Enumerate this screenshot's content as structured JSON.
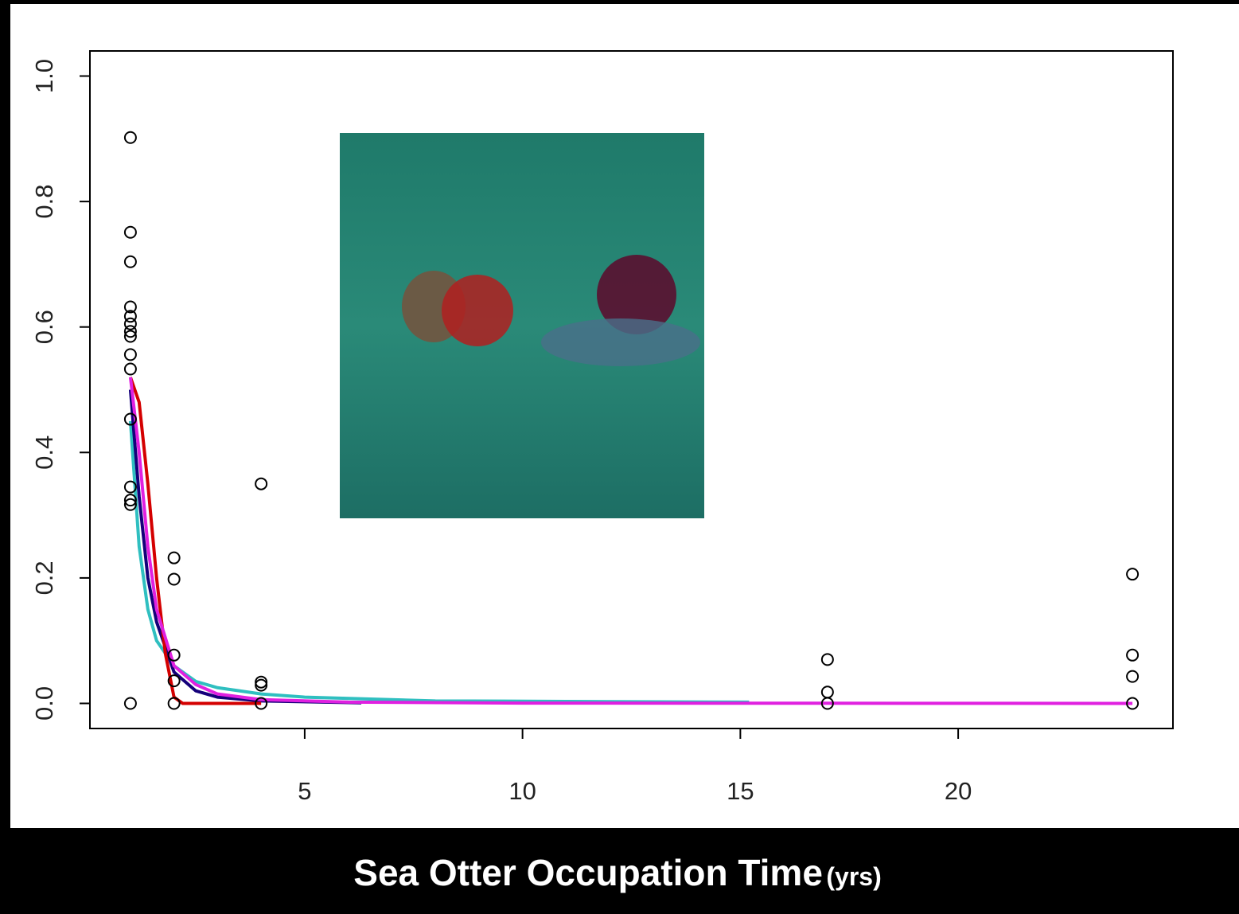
{
  "chart_data": {
    "type": "scatter",
    "x_label": "Sea Otter Occupation Time",
    "x_label_unit": "(yrs)",
    "xlim": [
      0.07,
      24.93
    ],
    "xticks": [
      5,
      10,
      15,
      20
    ],
    "ylim": [
      -0.04,
      1.04
    ],
    "yticks": [
      {
        "value": 0,
        "label": "0.0"
      },
      {
        "value": 0.2,
        "label": "0.2"
      },
      {
        "value": 0.4,
        "label": "0.4"
      },
      {
        "value": 0.6,
        "label": "0.6"
      },
      {
        "value": 0.8,
        "label": "0.8"
      },
      {
        "value": 1,
        "label": "1.0"
      }
    ],
    "point_color": "#000000",
    "x": [
      1,
      1,
      1,
      1,
      1,
      1,
      1,
      1,
      1,
      1,
      1,
      1,
      1,
      1,
      1,
      2,
      2,
      2,
      2,
      2,
      4,
      4,
      4,
      4,
      17,
      17,
      17,
      24,
      24,
      24,
      24
    ],
    "values": [
      0.902,
      0.751,
      0.704,
      0.632,
      0.617,
      0.605,
      0.593,
      0.585,
      0.556,
      0.533,
      0.453,
      0.345,
      0.324,
      0.317,
      0,
      0.232,
      0.198,
      0.077,
      0.036,
      0,
      0.35,
      0.034,
      0.029,
      0,
      0.07,
      0.018,
      0,
      0.206,
      0.077,
      0.043,
      0
    ],
    "lines": [
      {
        "color": "#2fbfc0",
        "x": [
          1,
          1.2,
          1.4,
          1.6,
          2,
          2.5,
          3,
          4,
          5,
          8,
          15.2
        ],
        "values": [
          0.45,
          0.25,
          0.15,
          0.1,
          0.06,
          0.035,
          0.025,
          0.015,
          0.01,
          0.004,
          0.002
        ]
      },
      {
        "color": "#14007a",
        "x": [
          1,
          1.2,
          1.4,
          1.6,
          2,
          2.5,
          3,
          4,
          6.3
        ],
        "values": [
          0.5,
          0.33,
          0.2,
          0.13,
          0.05,
          0.02,
          0.01,
          0.004,
          0.001
        ]
      },
      {
        "color": "#d40000",
        "x": [
          1,
          1.2,
          1.4,
          1.6,
          1.8,
          2,
          2.2,
          4
        ],
        "values": [
          0.52,
          0.48,
          0.35,
          0.2,
          0.08,
          0.01,
          0,
          0
        ]
      },
      {
        "color": "#e020e0",
        "x": [
          1,
          1.2,
          1.4,
          1.6,
          2,
          2.5,
          3,
          4,
          6,
          10,
          24
        ],
        "values": [
          0.52,
          0.4,
          0.25,
          0.15,
          0.06,
          0.03,
          0.015,
          0.006,
          0.002,
          0.0005,
          0
        ]
      }
    ]
  }
}
